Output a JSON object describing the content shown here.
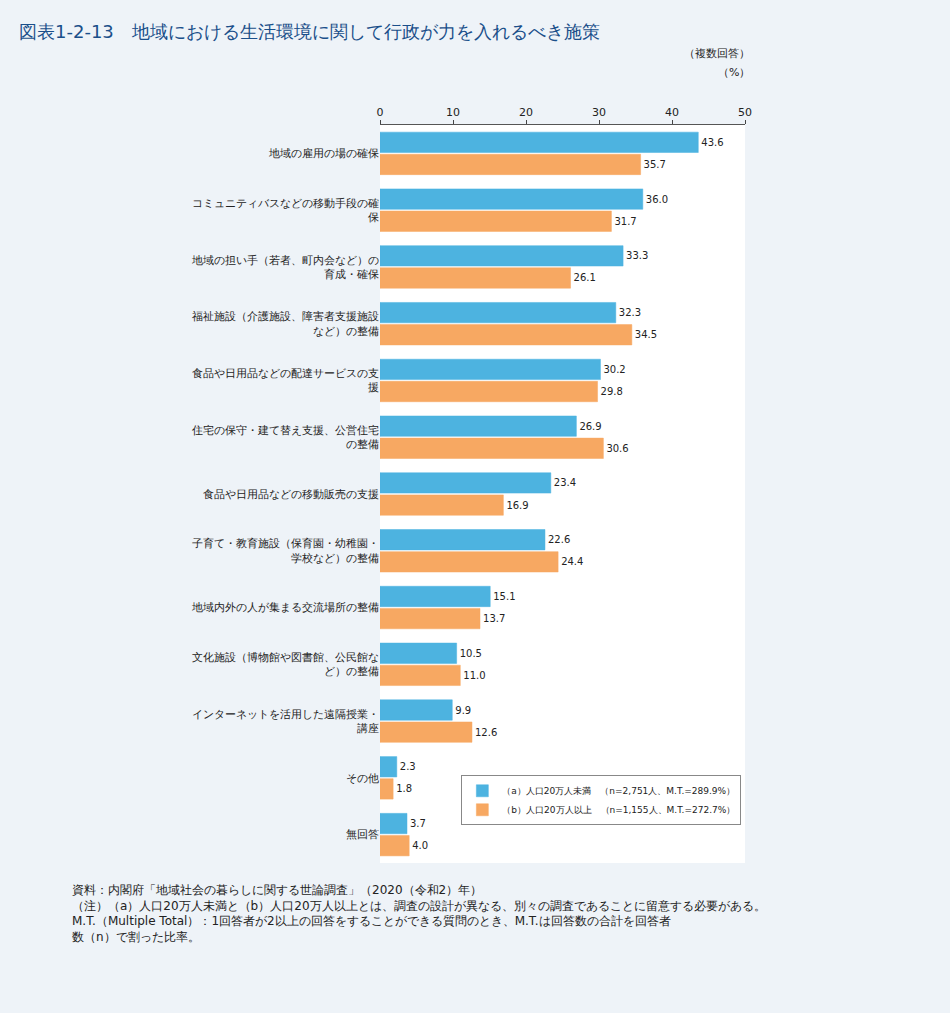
{
  "chart_data": {
    "type": "bar",
    "orientation": "horizontal",
    "title": "図表1-2-13　地域における生活環境に関して行政が力を入れるべき施策",
    "annotations": [
      "（複数回答）",
      "（%）"
    ],
    "source": "資料：内閣府「地域社会の暮らしに関する世論調査」（2020（令和2）年）",
    "notes": [
      "（注）（a）人口20万人未満と（b）人口20万人以上とは、調査の設計が異なる、別々の調査であることに留意する必要がある。",
      "M.T.（Multiple Total）：1回答者が2以上の回答をすることができる質問のとき、M.T.は回答数の合計を回答者数（n）で割った比率。"
    ],
    "categories": [
      "地域の雇用の場の確保",
      "コミュニティバスなどの移動手段の確保",
      "地域の担い手（若者、町内会など）の育成・確保",
      "福祉施設（介護施設、障害者支援施設など）の整備",
      "食品や日用品などの配達サービスの支援",
      "住宅の保守・建て替え支援、公営住宅の整備",
      "食品や日用品などの移動販売の支援",
      "子育て・教育施設（保育園・幼稚園・学校など）の整備",
      "地域内外の人が集まる交流場所の整備",
      "文化施設（博物館や図書館、公民館など）の整備",
      "インターネットを活用した遠隔授業・講座",
      "その他",
      "無回答"
    ],
    "series": [
      {
        "name": "（a）人口20万人未満　（n=2,751人、M.T.=289.9%）",
        "color": "#4db3e0",
        "values": [
          43.6,
          36.0,
          33.3,
          32.3,
          30.2,
          26.9,
          23.4,
          22.6,
          15.1,
          10.5,
          9.9,
          2.3,
          3.7
        ],
        "value_labels": [
          "43.6",
          "36.0",
          "33.3",
          "32.3",
          "30.2",
          "26.9",
          "23.4",
          "22.6",
          "15.1",
          "10.5",
          "9.9",
          "2.3",
          "3.7"
        ]
      },
      {
        "name": "（b）人口20万人以上　（n=1,155人、M.T.=272.7%）",
        "color": "#f7a862",
        "values": [
          35.7,
          31.7,
          26.1,
          34.5,
          29.8,
          30.6,
          16.9,
          24.4,
          13.7,
          11.0,
          12.6,
          1.8,
          4.0
        ],
        "value_labels": [
          "35.7",
          "31.7",
          "26.1",
          "34.5",
          "29.8",
          "30.6",
          "16.9",
          "24.4",
          "13.7",
          "11.0",
          "12.6",
          "1.8",
          "4.0"
        ]
      }
    ],
    "xlim": [
      0,
      50
    ],
    "xticks": [
      0,
      10,
      20,
      30,
      40,
      50
    ],
    "grid": false,
    "data_labels": true,
    "legend": "bottom right"
  }
}
